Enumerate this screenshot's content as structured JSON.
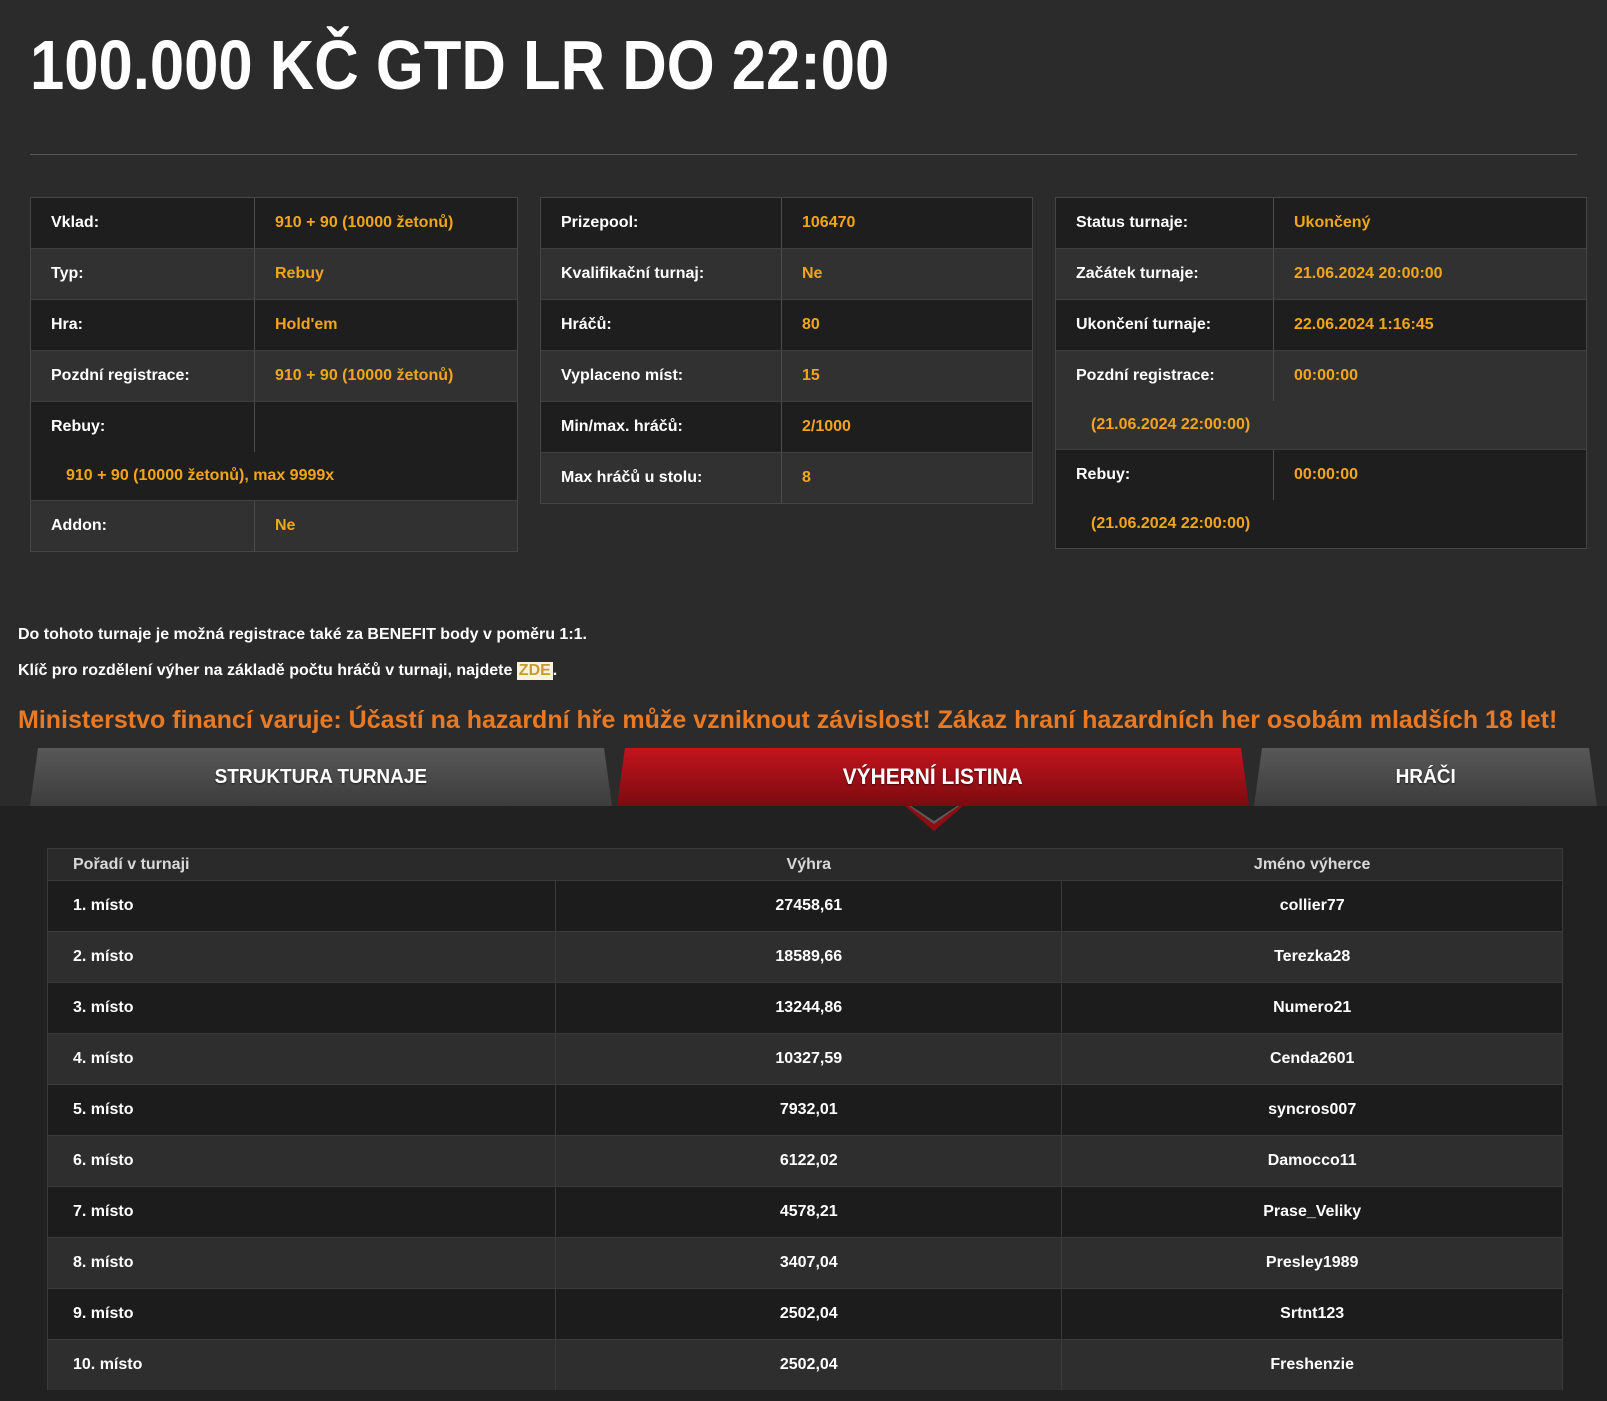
{
  "page": {
    "title": "100.000 KČ GTD LR DO 22:00"
  },
  "info_tables": {
    "left": {
      "rows": [
        {
          "label": "Vklad:",
          "value": "910 + 90 (10000 žetonů)"
        },
        {
          "label": "Typ:",
          "value": "Rebuy"
        },
        {
          "label": "Hra:",
          "value": "Hold'em"
        },
        {
          "label": "Pozdní registrace:",
          "value": "910 + 90 (10000 žetonů)"
        },
        {
          "label": "Rebuy:",
          "value": "",
          "subline": "910 + 90 (10000 žetonů), max 9999x"
        },
        {
          "label": "Addon:",
          "value": "Ne"
        }
      ]
    },
    "middle": {
      "rows": [
        {
          "label": "Prizepool:",
          "value": "106470"
        },
        {
          "label": "Kvalifikační turnaj:",
          "value": "Ne"
        },
        {
          "label": "Hráčů:",
          "value": "80"
        },
        {
          "label": "Vyplaceno míst:",
          "value": "15"
        },
        {
          "label": "Min/max. hráčů:",
          "value": "2/1000"
        },
        {
          "label": "Max hráčů u stolu:",
          "value": "8"
        }
      ]
    },
    "right": {
      "rows": [
        {
          "label": "Status turnaje:",
          "value": "Ukončený"
        },
        {
          "label": "Začátek turnaje:",
          "value": "21.06.2024 20:00:00"
        },
        {
          "label": "Ukončení turnaje:",
          "value": "22.06.2024 1:16:45"
        },
        {
          "label": "Pozdní registrace:",
          "value": "00:00:00",
          "subline": "(21.06.2024 22:00:00)"
        },
        {
          "label": "Rebuy:",
          "value": "00:00:00",
          "subline": "(21.06.2024 22:00:00)"
        }
      ]
    }
  },
  "notes": {
    "line1": "Do tohoto turnaje je možná registrace také za BENEFIT body v poměru 1:1.",
    "line2_prefix": "Klíč pro rozdělení výher na základě počtu hráčů v turnaji, najdete ",
    "line2_link": "ZDE",
    "line2_suffix": ".",
    "warning": "Ministerstvo financí varuje: Účastí na hazardní hře může vzniknout závislost! Zákaz hraní hazardních her osobám mladších 18 let!"
  },
  "tabs": [
    {
      "label": "STRUKTURA TURNAJE",
      "active": false
    },
    {
      "label": "VÝHERNÍ LISTINA",
      "active": true
    },
    {
      "label": "HRÁČI",
      "active": false
    }
  ],
  "results": {
    "columns": [
      "Pořadí v turnaji",
      "Výhra",
      "Jméno výherce"
    ],
    "rows": [
      {
        "place": "1. místo",
        "prize": "27458,61",
        "winner": "collier77"
      },
      {
        "place": "2. místo",
        "prize": "18589,66",
        "winner": "Terezka28"
      },
      {
        "place": "3. místo",
        "prize": "13244,86",
        "winner": "Numero21"
      },
      {
        "place": "4. místo",
        "prize": "10327,59",
        "winner": "Cenda2601"
      },
      {
        "place": "5. místo",
        "prize": "7932,01",
        "winner": "syncros007"
      },
      {
        "place": "6. místo",
        "prize": "6122,02",
        "winner": "Damocco11"
      },
      {
        "place": "7. místo",
        "prize": "4578,21",
        "winner": "Prase_Veliky"
      },
      {
        "place": "8. místo",
        "prize": "3407,04",
        "winner": "Presley1989"
      },
      {
        "place": "9. místo",
        "prize": "2502,04",
        "winner": "Srtnt123"
      },
      {
        "place": "10. místo",
        "prize": "2502,04",
        "winner": "Freshenzie"
      }
    ]
  },
  "colors": {
    "page_bg": "#2b2b2b",
    "panel_bg": "#212121",
    "row_dark": "#1e1e1e",
    "row_light": "#313131",
    "results_row_dark": "#1c1c1c",
    "results_row_light": "#2e2e2e",
    "header_bg": "#2a2a2a",
    "accent_orange": "#f2a51c",
    "warning_orange": "#e87a25",
    "tab_red_top": "#c3141d",
    "tab_red_bottom": "#7a0b10",
    "tab_gray_top": "#585858",
    "tab_gray_bottom": "#3c3c3c",
    "link_bg": "#f8f3de",
    "link_text": "#c79a33",
    "border": "#464646",
    "line": "#3a3a3a",
    "text": "#ffffff"
  }
}
